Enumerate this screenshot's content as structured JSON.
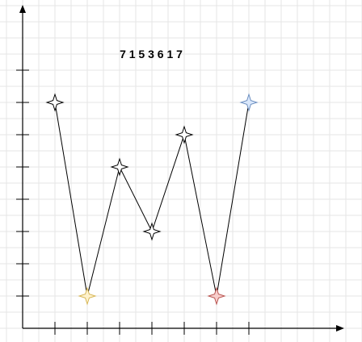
{
  "chart_data": {
    "type": "line",
    "title": "7 1 5 3 6 1 7",
    "xlabel": "",
    "ylabel": "",
    "x": [
      1,
      2,
      3,
      4,
      5,
      6,
      7
    ],
    "values": [
      7,
      1,
      5,
      3,
      6,
      1,
      7
    ],
    "xlim": [
      0,
      8
    ],
    "ylim": [
      0,
      9
    ],
    "grid": true,
    "marker": "four-point-star",
    "line_color": "#000000",
    "marker_fill": [
      "#ffffff",
      "#fff2cc",
      "#ffffff",
      "#ffffff",
      "#ffffff",
      "#f8cecc",
      "#dae8fc"
    ],
    "marker_stroke": [
      "#000000",
      "#d6b656",
      "#000000",
      "#000000",
      "#000000",
      "#b85450",
      "#6c8ebf"
    ],
    "grid_color": "#e6e6e6",
    "axis_color": "#000000"
  }
}
